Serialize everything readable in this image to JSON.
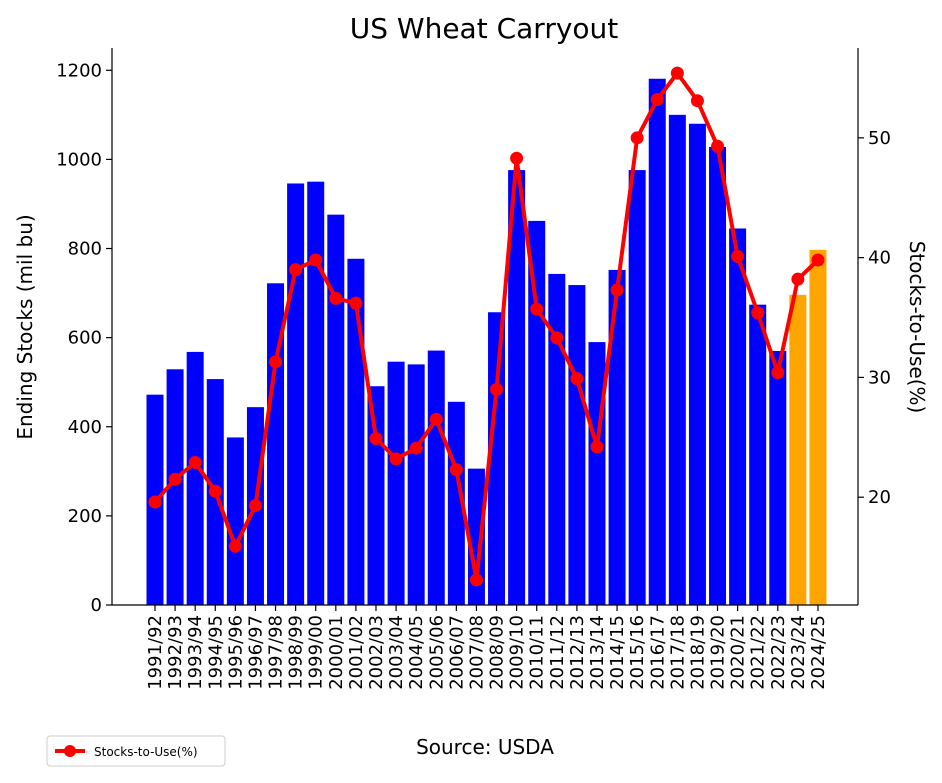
{
  "chart_data": {
    "type": "bar",
    "title": "US Wheat Carryout",
    "xlabel": "",
    "ylabel": "Ending Stocks (mil bu)",
    "y2label": "Stocks-to-Use(%)",
    "source": "Source: USDA",
    "ylim": [
      0,
      1250
    ],
    "y2lim": [
      11.0,
      57.5
    ],
    "yticks": [
      0,
      200,
      400,
      600,
      800,
      1000,
      1200
    ],
    "y2ticks": [
      20,
      30,
      40,
      50
    ],
    "grid": false,
    "legend_position": "bottom-left",
    "colors": {
      "bar_actual": "#0000ff",
      "bar_projected": "#ffa500",
      "line": "#ff0000"
    },
    "categories": [
      "1991/92",
      "1992/93",
      "1993/94",
      "1994/95",
      "1995/96",
      "1996/97",
      "1997/98",
      "1998/99",
      "1999/00",
      "2000/01",
      "2001/02",
      "2002/03",
      "2003/04",
      "2004/05",
      "2005/06",
      "2006/07",
      "2007/08",
      "2008/09",
      "2009/10",
      "2010/11",
      "2011/12",
      "2012/13",
      "2013/14",
      "2014/15",
      "2015/16",
      "2016/17",
      "2017/18",
      "2018/19",
      "2019/20",
      "2020/21",
      "2021/22",
      "2022/23",
      "2023/24",
      "2024/25"
    ],
    "series": [
      {
        "kind": "bar",
        "axis": "left",
        "values": [
          472,
          529,
          568,
          507,
          376,
          444,
          722,
          946,
          950,
          876,
          777,
          491,
          546,
          540,
          571,
          456,
          306,
          657,
          976,
          862,
          743,
          718,
          590,
          752,
          976,
          1181,
          1100,
          1080,
          1028,
          845,
          674,
          570,
          696,
          797
        ],
        "projected": [
          false,
          false,
          false,
          false,
          false,
          false,
          false,
          false,
          false,
          false,
          false,
          false,
          false,
          false,
          false,
          false,
          false,
          false,
          false,
          false,
          false,
          false,
          false,
          false,
          false,
          false,
          false,
          false,
          false,
          false,
          false,
          false,
          true,
          true
        ]
      },
      {
        "kind": "line",
        "axis": "right",
        "name": "Stocks-to-Use(%)",
        "values": [
          19.6,
          21.5,
          22.9,
          20.5,
          15.9,
          19.3,
          31.3,
          39.0,
          39.8,
          36.6,
          36.2,
          24.9,
          23.2,
          24.1,
          26.5,
          22.3,
          13.1,
          29.0,
          48.3,
          35.7,
          33.3,
          29.9,
          24.2,
          37.3,
          50.0,
          53.2,
          55.4,
          53.1,
          49.3,
          40.1,
          35.4,
          30.4,
          38.2,
          39.8
        ]
      }
    ]
  }
}
